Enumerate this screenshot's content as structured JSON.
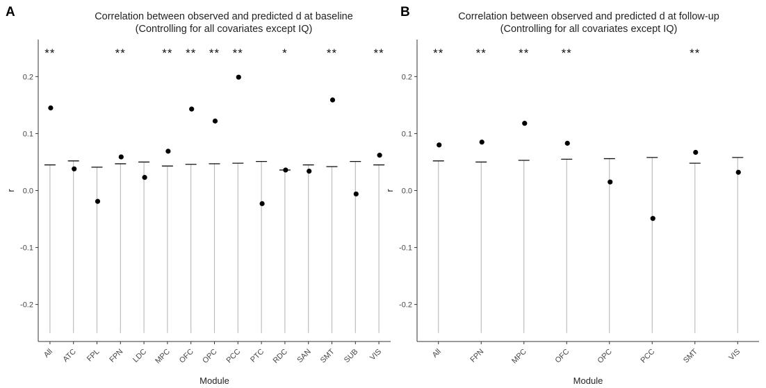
{
  "chart_data": [
    {
      "panel": "A",
      "type": "scatter",
      "title": "Correlation between observed and predicted d at baseline",
      "subtitle": "(Controlling for all covariates except IQ)",
      "xlabel": "Module",
      "ylabel": "r",
      "ylim": [
        -0.265,
        0.265
      ],
      "yticks": [
        0.2,
        0.1,
        0.0,
        -0.1,
        -0.2
      ],
      "ytick_labels": [
        "0.2",
        "0.1",
        "0.0",
        "-0.1",
        "-0.2"
      ],
      "grid": false,
      "categories": [
        "All",
        "ATC",
        "FPL",
        "FPN",
        "LDC",
        "MPC",
        "OFC",
        "OPC",
        "PCC",
        "PTC",
        "RDC",
        "SAN",
        "SMT",
        "SUB",
        "VIS"
      ],
      "observed_r": [
        0.145,
        0.038,
        -0.019,
        0.059,
        0.023,
        0.069,
        0.143,
        0.122,
        0.199,
        -0.023,
        0.036,
        0.034,
        0.159,
        -0.006,
        0.062
      ],
      "null_upper": [
        0.045,
        0.052,
        0.041,
        0.047,
        0.05,
        0.043,
        0.046,
        0.047,
        0.048,
        0.051,
        0.036,
        0.045,
        0.042,
        0.051,
        0.045
      ],
      "null_lower": [
        -0.25,
        -0.25,
        -0.25,
        -0.25,
        -0.25,
        -0.25,
        -0.25,
        -0.25,
        -0.25,
        -0.25,
        -0.25,
        -0.25,
        -0.25,
        -0.25,
        -0.25
      ],
      "significance": [
        "**",
        "",
        "",
        "**",
        "",
        "**",
        "**",
        "**",
        "**",
        "",
        "*",
        "",
        "**",
        "",
        "**"
      ]
    },
    {
      "panel": "B",
      "type": "scatter",
      "title": "Correlation between observed and predicted d at follow-up",
      "subtitle": "(Controlling for all covariates except IQ)",
      "xlabel": "Module",
      "ylabel": "r",
      "ylim": [
        -0.265,
        0.265
      ],
      "yticks": [
        0.2,
        0.1,
        0.0,
        -0.1,
        -0.2
      ],
      "ytick_labels": [
        "0.2",
        "0.1",
        "0.0",
        "-0.1",
        "-0.2"
      ],
      "grid": false,
      "categories": [
        "All",
        "FPN",
        "MPC",
        "OFC",
        "OPC",
        "PCC",
        "SMT",
        "VIS"
      ],
      "observed_r": [
        0.08,
        0.085,
        0.118,
        0.083,
        0.015,
        -0.049,
        0.067,
        0.032
      ],
      "null_upper": [
        0.052,
        0.05,
        0.053,
        0.055,
        0.056,
        0.058,
        0.048,
        0.058
      ],
      "null_lower": [
        -0.25,
        -0.25,
        -0.25,
        -0.25,
        -0.25,
        -0.25,
        -0.25,
        -0.25
      ],
      "significance": [
        "**",
        "**",
        "**",
        "**",
        "",
        "",
        "**",
        ""
      ]
    }
  ]
}
